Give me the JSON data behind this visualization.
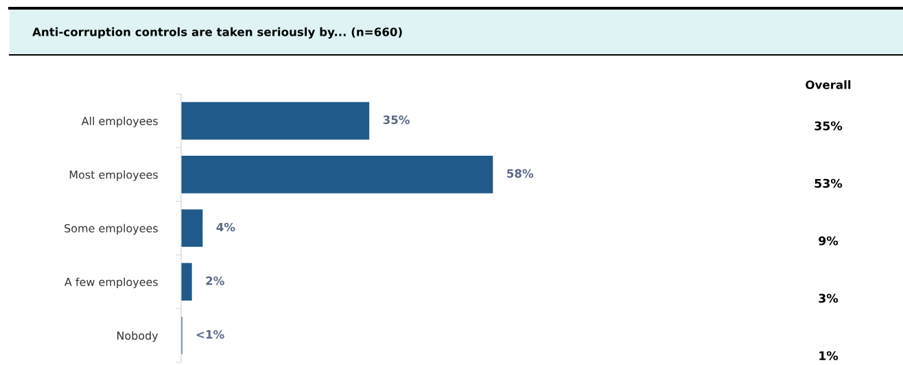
{
  "chart_data": {
    "type": "bar",
    "orientation": "horizontal",
    "title": "Anti-corruption controls are taken seriously by... (n=660)",
    "categories": [
      "All employees",
      "Most employees",
      "Some employees",
      "A few employees",
      "Nobody"
    ],
    "values": [
      35,
      58,
      4,
      2,
      0.2
    ],
    "color": "#1f5a8a",
    "value_labels": [
      "35%",
      "58%",
      "4%",
      "2%",
      "<1%"
    ],
    "annotations": [
      "Overall",
      "35%",
      "53%",
      "9%",
      "3%",
      "1%"
    ]
  }
}
